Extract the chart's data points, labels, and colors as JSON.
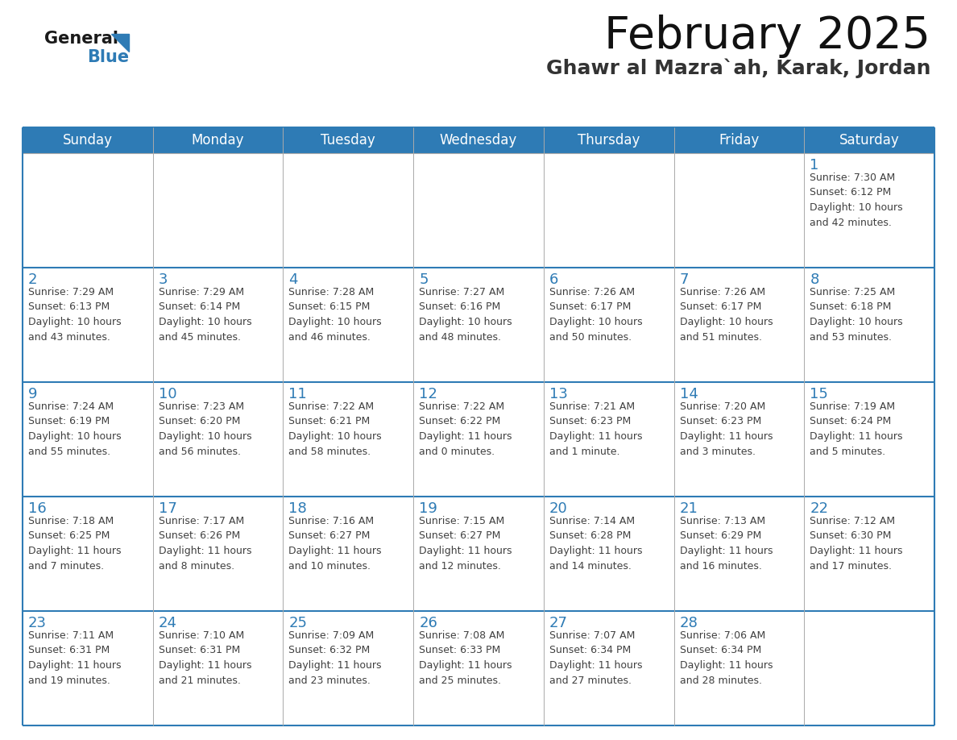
{
  "title": "February 2025",
  "subtitle": "Ghawr al Mazra`ah, Karak, Jordan",
  "header_bg": "#2E7BB5",
  "header_text": "#FFFFFF",
  "day_number_color": "#2E7BB5",
  "text_color": "#404040",
  "line_color": "#2E7BB5",
  "grid_line_color": "#AAAAAA",
  "cell_bg": "#FFFFFF",
  "days_of_week": [
    "Sunday",
    "Monday",
    "Tuesday",
    "Wednesday",
    "Thursday",
    "Friday",
    "Saturday"
  ],
  "logo_general_color": "#1a1a1a",
  "logo_blue_color": "#2E7BB5",
  "title_fontsize": 40,
  "subtitle_fontsize": 18,
  "header_fontsize": 12,
  "day_num_fontsize": 13,
  "info_fontsize": 9,
  "weeks": [
    [
      {
        "day": null,
        "info": null
      },
      {
        "day": null,
        "info": null
      },
      {
        "day": null,
        "info": null
      },
      {
        "day": null,
        "info": null
      },
      {
        "day": null,
        "info": null
      },
      {
        "day": null,
        "info": null
      },
      {
        "day": 1,
        "info": "Sunrise: 7:30 AM\nSunset: 6:12 PM\nDaylight: 10 hours\nand 42 minutes."
      }
    ],
    [
      {
        "day": 2,
        "info": "Sunrise: 7:29 AM\nSunset: 6:13 PM\nDaylight: 10 hours\nand 43 minutes."
      },
      {
        "day": 3,
        "info": "Sunrise: 7:29 AM\nSunset: 6:14 PM\nDaylight: 10 hours\nand 45 minutes."
      },
      {
        "day": 4,
        "info": "Sunrise: 7:28 AM\nSunset: 6:15 PM\nDaylight: 10 hours\nand 46 minutes."
      },
      {
        "day": 5,
        "info": "Sunrise: 7:27 AM\nSunset: 6:16 PM\nDaylight: 10 hours\nand 48 minutes."
      },
      {
        "day": 6,
        "info": "Sunrise: 7:26 AM\nSunset: 6:17 PM\nDaylight: 10 hours\nand 50 minutes."
      },
      {
        "day": 7,
        "info": "Sunrise: 7:26 AM\nSunset: 6:17 PM\nDaylight: 10 hours\nand 51 minutes."
      },
      {
        "day": 8,
        "info": "Sunrise: 7:25 AM\nSunset: 6:18 PM\nDaylight: 10 hours\nand 53 minutes."
      }
    ],
    [
      {
        "day": 9,
        "info": "Sunrise: 7:24 AM\nSunset: 6:19 PM\nDaylight: 10 hours\nand 55 minutes."
      },
      {
        "day": 10,
        "info": "Sunrise: 7:23 AM\nSunset: 6:20 PM\nDaylight: 10 hours\nand 56 minutes."
      },
      {
        "day": 11,
        "info": "Sunrise: 7:22 AM\nSunset: 6:21 PM\nDaylight: 10 hours\nand 58 minutes."
      },
      {
        "day": 12,
        "info": "Sunrise: 7:22 AM\nSunset: 6:22 PM\nDaylight: 11 hours\nand 0 minutes."
      },
      {
        "day": 13,
        "info": "Sunrise: 7:21 AM\nSunset: 6:23 PM\nDaylight: 11 hours\nand 1 minute."
      },
      {
        "day": 14,
        "info": "Sunrise: 7:20 AM\nSunset: 6:23 PM\nDaylight: 11 hours\nand 3 minutes."
      },
      {
        "day": 15,
        "info": "Sunrise: 7:19 AM\nSunset: 6:24 PM\nDaylight: 11 hours\nand 5 minutes."
      }
    ],
    [
      {
        "day": 16,
        "info": "Sunrise: 7:18 AM\nSunset: 6:25 PM\nDaylight: 11 hours\nand 7 minutes."
      },
      {
        "day": 17,
        "info": "Sunrise: 7:17 AM\nSunset: 6:26 PM\nDaylight: 11 hours\nand 8 minutes."
      },
      {
        "day": 18,
        "info": "Sunrise: 7:16 AM\nSunset: 6:27 PM\nDaylight: 11 hours\nand 10 minutes."
      },
      {
        "day": 19,
        "info": "Sunrise: 7:15 AM\nSunset: 6:27 PM\nDaylight: 11 hours\nand 12 minutes."
      },
      {
        "day": 20,
        "info": "Sunrise: 7:14 AM\nSunset: 6:28 PM\nDaylight: 11 hours\nand 14 minutes."
      },
      {
        "day": 21,
        "info": "Sunrise: 7:13 AM\nSunset: 6:29 PM\nDaylight: 11 hours\nand 16 minutes."
      },
      {
        "day": 22,
        "info": "Sunrise: 7:12 AM\nSunset: 6:30 PM\nDaylight: 11 hours\nand 17 minutes."
      }
    ],
    [
      {
        "day": 23,
        "info": "Sunrise: 7:11 AM\nSunset: 6:31 PM\nDaylight: 11 hours\nand 19 minutes."
      },
      {
        "day": 24,
        "info": "Sunrise: 7:10 AM\nSunset: 6:31 PM\nDaylight: 11 hours\nand 21 minutes."
      },
      {
        "day": 25,
        "info": "Sunrise: 7:09 AM\nSunset: 6:32 PM\nDaylight: 11 hours\nand 23 minutes."
      },
      {
        "day": 26,
        "info": "Sunrise: 7:08 AM\nSunset: 6:33 PM\nDaylight: 11 hours\nand 25 minutes."
      },
      {
        "day": 27,
        "info": "Sunrise: 7:07 AM\nSunset: 6:34 PM\nDaylight: 11 hours\nand 27 minutes."
      },
      {
        "day": 28,
        "info": "Sunrise: 7:06 AM\nSunset: 6:34 PM\nDaylight: 11 hours\nand 28 minutes."
      },
      {
        "day": null,
        "info": null
      }
    ]
  ]
}
